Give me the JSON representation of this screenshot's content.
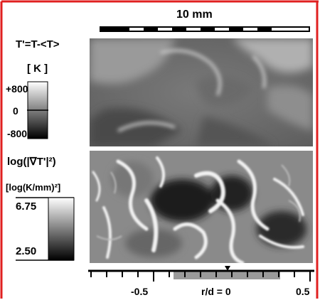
{
  "scale_bar": {
    "label": "10 mm"
  },
  "temperature_panel": {
    "title": "T'=T-<T>",
    "unit": "[ K ]",
    "ticks": [
      "+800",
      "0",
      "-800"
    ]
  },
  "gradient_panel": {
    "title": "log(|∇T'|²)",
    "unit": "[log(K/mm)²]",
    "ticks": [
      "6.75",
      "2.50"
    ]
  },
  "axis": {
    "ticks": [
      "-0.5",
      "r/d = 0",
      "0.5"
    ]
  },
  "colors": {
    "frame": "#e02020",
    "text": "#000000"
  }
}
